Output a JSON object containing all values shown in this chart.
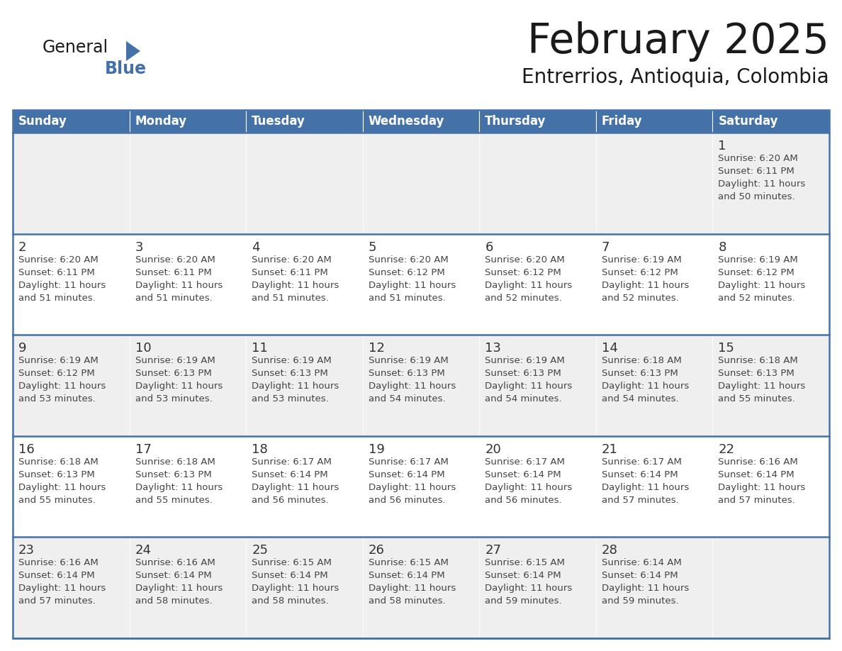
{
  "title": "February 2025",
  "subtitle": "Entrerrios, Antioquia, Colombia",
  "days_of_week": [
    "Sunday",
    "Monday",
    "Tuesday",
    "Wednesday",
    "Thursday",
    "Friday",
    "Saturday"
  ],
  "header_bg_color": "#4472A8",
  "header_text_color": "#FFFFFF",
  "row_bg_even": "#EFEFEF",
  "row_bg_odd": "#FFFFFF",
  "cell_border_color": "#4472A8",
  "day_num_color": "#333333",
  "title_color": "#1a1a1a",
  "subtitle_color": "#1a1a1a",
  "info_text_color": "#444444",
  "calendar_data": [
    {
      "day": 1,
      "col": 6,
      "row": 0,
      "sunrise": "6:20 AM",
      "sunset": "6:11 PM",
      "daylight": "11 hours and 50 minutes."
    },
    {
      "day": 2,
      "col": 0,
      "row": 1,
      "sunrise": "6:20 AM",
      "sunset": "6:11 PM",
      "daylight": "11 hours and 51 minutes."
    },
    {
      "day": 3,
      "col": 1,
      "row": 1,
      "sunrise": "6:20 AM",
      "sunset": "6:11 PM",
      "daylight": "11 hours and 51 minutes."
    },
    {
      "day": 4,
      "col": 2,
      "row": 1,
      "sunrise": "6:20 AM",
      "sunset": "6:11 PM",
      "daylight": "11 hours and 51 minutes."
    },
    {
      "day": 5,
      "col": 3,
      "row": 1,
      "sunrise": "6:20 AM",
      "sunset": "6:12 PM",
      "daylight": "11 hours and 51 minutes."
    },
    {
      "day": 6,
      "col": 4,
      "row": 1,
      "sunrise": "6:20 AM",
      "sunset": "6:12 PM",
      "daylight": "11 hours and 52 minutes."
    },
    {
      "day": 7,
      "col": 5,
      "row": 1,
      "sunrise": "6:19 AM",
      "sunset": "6:12 PM",
      "daylight": "11 hours and 52 minutes."
    },
    {
      "day": 8,
      "col": 6,
      "row": 1,
      "sunrise": "6:19 AM",
      "sunset": "6:12 PM",
      "daylight": "11 hours and 52 minutes."
    },
    {
      "day": 9,
      "col": 0,
      "row": 2,
      "sunrise": "6:19 AM",
      "sunset": "6:12 PM",
      "daylight": "11 hours and 53 minutes."
    },
    {
      "day": 10,
      "col": 1,
      "row": 2,
      "sunrise": "6:19 AM",
      "sunset": "6:13 PM",
      "daylight": "11 hours and 53 minutes."
    },
    {
      "day": 11,
      "col": 2,
      "row": 2,
      "sunrise": "6:19 AM",
      "sunset": "6:13 PM",
      "daylight": "11 hours and 53 minutes."
    },
    {
      "day": 12,
      "col": 3,
      "row": 2,
      "sunrise": "6:19 AM",
      "sunset": "6:13 PM",
      "daylight": "11 hours and 54 minutes."
    },
    {
      "day": 13,
      "col": 4,
      "row": 2,
      "sunrise": "6:19 AM",
      "sunset": "6:13 PM",
      "daylight": "11 hours and 54 minutes."
    },
    {
      "day": 14,
      "col": 5,
      "row": 2,
      "sunrise": "6:18 AM",
      "sunset": "6:13 PM",
      "daylight": "11 hours and 54 minutes."
    },
    {
      "day": 15,
      "col": 6,
      "row": 2,
      "sunrise": "6:18 AM",
      "sunset": "6:13 PM",
      "daylight": "11 hours and 55 minutes."
    },
    {
      "day": 16,
      "col": 0,
      "row": 3,
      "sunrise": "6:18 AM",
      "sunset": "6:13 PM",
      "daylight": "11 hours and 55 minutes."
    },
    {
      "day": 17,
      "col": 1,
      "row": 3,
      "sunrise": "6:18 AM",
      "sunset": "6:13 PM",
      "daylight": "11 hours and 55 minutes."
    },
    {
      "day": 18,
      "col": 2,
      "row": 3,
      "sunrise": "6:17 AM",
      "sunset": "6:14 PM",
      "daylight": "11 hours and 56 minutes."
    },
    {
      "day": 19,
      "col": 3,
      "row": 3,
      "sunrise": "6:17 AM",
      "sunset": "6:14 PM",
      "daylight": "11 hours and 56 minutes."
    },
    {
      "day": 20,
      "col": 4,
      "row": 3,
      "sunrise": "6:17 AM",
      "sunset": "6:14 PM",
      "daylight": "11 hours and 56 minutes."
    },
    {
      "day": 21,
      "col": 5,
      "row": 3,
      "sunrise": "6:17 AM",
      "sunset": "6:14 PM",
      "daylight": "11 hours and 57 minutes."
    },
    {
      "day": 22,
      "col": 6,
      "row": 3,
      "sunrise": "6:16 AM",
      "sunset": "6:14 PM",
      "daylight": "11 hours and 57 minutes."
    },
    {
      "day": 23,
      "col": 0,
      "row": 4,
      "sunrise": "6:16 AM",
      "sunset": "6:14 PM",
      "daylight": "11 hours and 57 minutes."
    },
    {
      "day": 24,
      "col": 1,
      "row": 4,
      "sunrise": "6:16 AM",
      "sunset": "6:14 PM",
      "daylight": "11 hours and 58 minutes."
    },
    {
      "day": 25,
      "col": 2,
      "row": 4,
      "sunrise": "6:15 AM",
      "sunset": "6:14 PM",
      "daylight": "11 hours and 58 minutes."
    },
    {
      "day": 26,
      "col": 3,
      "row": 4,
      "sunrise": "6:15 AM",
      "sunset": "6:14 PM",
      "daylight": "11 hours and 58 minutes."
    },
    {
      "day": 27,
      "col": 4,
      "row": 4,
      "sunrise": "6:15 AM",
      "sunset": "6:14 PM",
      "daylight": "11 hours and 59 minutes."
    },
    {
      "day": 28,
      "col": 5,
      "row": 4,
      "sunrise": "6:14 AM",
      "sunset": "6:14 PM",
      "daylight": "11 hours and 59 minutes."
    }
  ],
  "num_rows": 5,
  "logo_general_color": "#1a1a1a",
  "logo_blue_color": "#4472A8",
  "logo_triangle_color": "#4472A8"
}
